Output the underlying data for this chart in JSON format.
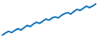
{
  "values": [
    1,
    2,
    2.8,
    2.2,
    3.2,
    4.0,
    3.4,
    4.5,
    5.5,
    5.0,
    6.2,
    7.0,
    6.5,
    7.5,
    8.5,
    8.0,
    9.0,
    9.5,
    9.0,
    10.2,
    11.0,
    11.5,
    10.8,
    12.0,
    13.0,
    12.5,
    13.5,
    14.5,
    13.8,
    14.5,
    15.5
  ],
  "line_color": "#1a7abf",
  "line_width": 1.5,
  "background_color": "#ffffff"
}
